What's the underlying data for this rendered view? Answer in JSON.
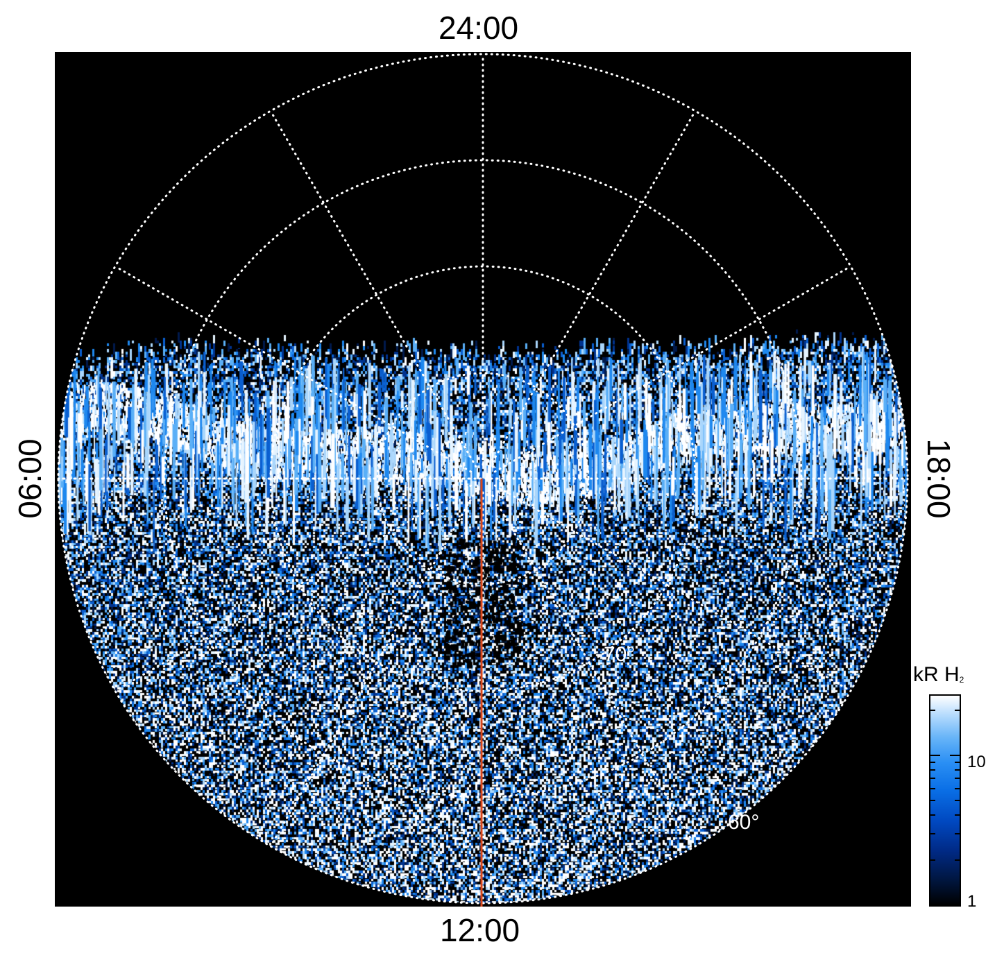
{
  "figure": {
    "local_time_labels": {
      "top": "24:00",
      "bottom": "12:00",
      "left": "06:00",
      "right": "18:00"
    },
    "latitude_labels": {
      "lat_70": "70°",
      "lat_60": "60°"
    },
    "colorbar": {
      "title": "kR H",
      "title_subscript": "2",
      "tick_labels": [
        "10",
        "1"
      ],
      "scale": "log",
      "colors": [
        "#000000",
        "#002a86",
        "#0a6fe6",
        "#67b4f8",
        "#ffffff"
      ]
    },
    "colors": {
      "background": "#000000",
      "grid": "#ffffff",
      "meridian_line": "#d8461b"
    }
  }
}
